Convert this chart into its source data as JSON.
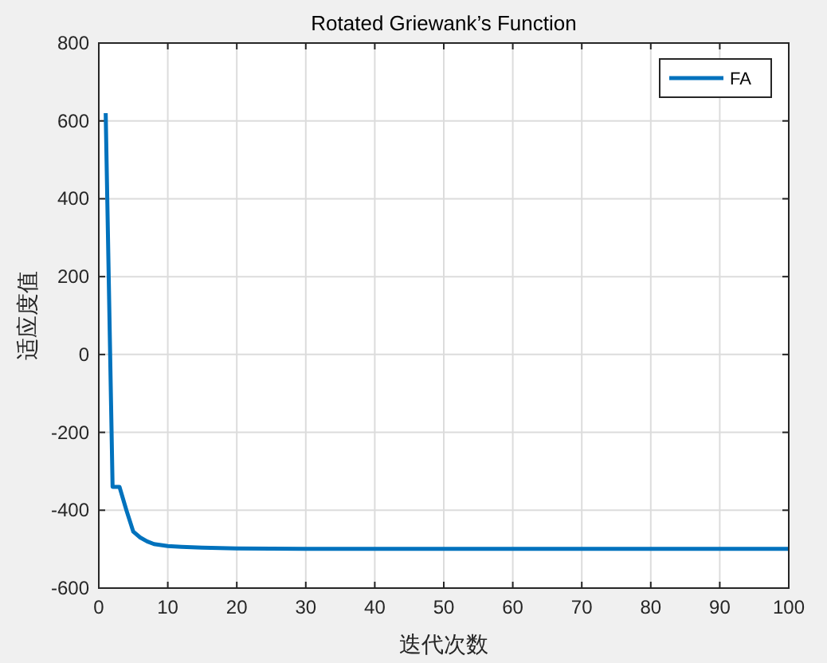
{
  "chart_data": {
    "type": "line",
    "title": "Rotated Griewank’s Function",
    "xlabel": "迭代次数",
    "ylabel": "适应度值",
    "x": [
      1,
      2,
      3,
      4,
      5,
      6,
      7,
      8,
      10,
      12,
      15,
      20,
      30,
      40,
      50,
      60,
      70,
      80,
      90,
      100
    ],
    "series": [
      {
        "name": "FA",
        "color": "#0072bd",
        "values": [
          620,
          -340,
          -340,
          -400,
          -455,
          -470,
          -480,
          -487,
          -492,
          -494,
          -496,
          -498,
          -499,
          -499,
          -499,
          -499,
          -499,
          -499,
          -499,
          -499
        ]
      }
    ],
    "xlim": [
      0,
      100
    ],
    "xticks": [
      0,
      10,
      20,
      30,
      40,
      50,
      60,
      70,
      80,
      90,
      100
    ],
    "ylim": [
      -600,
      800
    ],
    "yticks": [
      -600,
      -400,
      -200,
      0,
      200,
      400,
      600,
      800
    ],
    "grid": true,
    "legend": "top right",
    "marker": "none",
    "line_style": "solid"
  }
}
